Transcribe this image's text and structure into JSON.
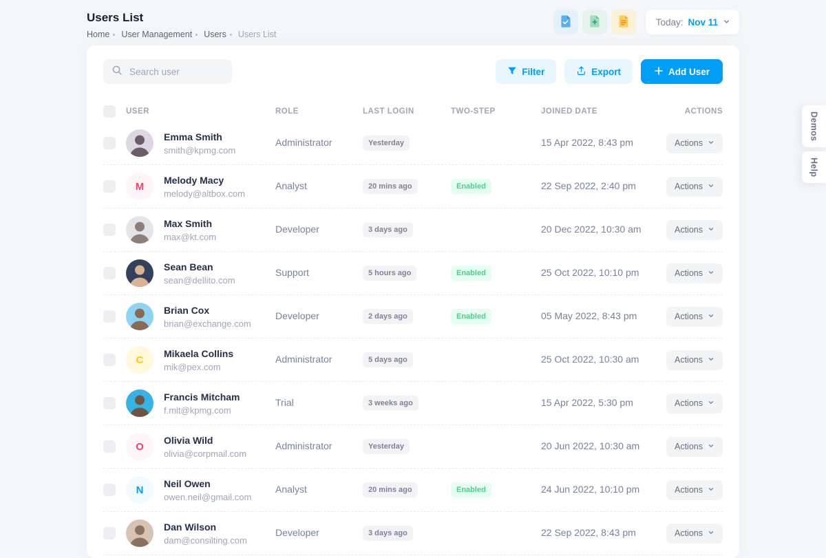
{
  "colors": {
    "primary": "#009ef7",
    "success": "#50cd89",
    "success_badge_bg": "#e4fff1",
    "light_badge_bg": "#f3f3f6",
    "page_bg": "#f4f6f9"
  },
  "page": {
    "title": "Users List",
    "breadcrumb": [
      "Home",
      "User Management",
      "Users",
      "Users List"
    ],
    "date_label": "Today:",
    "date_value": "Nov 11",
    "quick_icons": [
      "file-check-icon",
      "file-plus-icon",
      "file-lines-icon"
    ]
  },
  "side_tabs": {
    "demos": "Demos",
    "help": "Help"
  },
  "toolbar": {
    "search_placeholder": "Search user",
    "filter_label": "Filter",
    "export_label": "Export",
    "add_user_label": "Add User"
  },
  "table": {
    "headers": [
      "User",
      "Role",
      "Last login",
      "Two-step",
      "Joined Date",
      "Actions"
    ],
    "actions_label": "Actions",
    "rows": [
      {
        "name": "Emma Smith",
        "email": "smith@kpmg.com",
        "role": "Administrator",
        "last_login": "Yesterday",
        "two_step": "",
        "joined": "15 Apr 2022, 8:43 pm",
        "avatar": {
          "kind": "photo",
          "bg": "#dcd7e2",
          "color": "#6b5d66"
        }
      },
      {
        "name": "Melody Macy",
        "email": "melody@altbox.com",
        "role": "Analyst",
        "last_login": "20 mins ago",
        "two_step": "Enabled",
        "joined": "22 Sep 2022, 2:40 pm",
        "avatar": {
          "kind": "initial",
          "initial": "M",
          "bg": "#fff5f8",
          "color": "#f1416c"
        }
      },
      {
        "name": "Max Smith",
        "email": "max@kt.com",
        "role": "Developer",
        "last_login": "3 days ago",
        "two_step": "",
        "joined": "20 Dec 2022, 10:30 am",
        "avatar": {
          "kind": "photo",
          "bg": "#e3e5e8",
          "color": "#8d8078"
        }
      },
      {
        "name": "Sean Bean",
        "email": "sean@dellito.com",
        "role": "Support",
        "last_login": "5 hours ago",
        "two_step": "Enabled",
        "joined": "25 Oct 2022, 10:10 pm",
        "avatar": {
          "kind": "photo",
          "bg": "#33415c",
          "color": "#d8b394"
        }
      },
      {
        "name": "Brian Cox",
        "email": "brian@exchange.com",
        "role": "Developer",
        "last_login": "2 days ago",
        "two_step": "Enabled",
        "joined": "05 May 2022, 8:43 pm",
        "avatar": {
          "kind": "photo",
          "bg": "#8ed4f2",
          "color": "#8a6a52"
        }
      },
      {
        "name": "Mikaela Collins",
        "email": "mik@pex.com",
        "role": "Administrator",
        "last_login": "5 days ago",
        "two_step": "",
        "joined": "25 Oct 2022, 10:30 am",
        "avatar": {
          "kind": "initial",
          "initial": "C",
          "bg": "#fff8dd",
          "color": "#ffc700"
        }
      },
      {
        "name": "Francis Mitcham",
        "email": "f.mit@kpmg.com",
        "role": "Trial",
        "last_login": "3 weeks ago",
        "two_step": "",
        "joined": "15 Apr 2022, 5:30 pm",
        "avatar": {
          "kind": "photo",
          "bg": "#36b3e3",
          "color": "#6f5442"
        }
      },
      {
        "name": "Olivia Wild",
        "email": "olivia@corpmail.com",
        "role": "Administrator",
        "last_login": "Yesterday",
        "two_step": "",
        "joined": "20 Jun 2022, 10:30 am",
        "avatar": {
          "kind": "initial",
          "initial": "O",
          "bg": "#fff5f8",
          "color": "#f1416c"
        }
      },
      {
        "name": "Neil Owen",
        "email": "owen.neil@gmail.com",
        "role": "Analyst",
        "last_login": "20 mins ago",
        "two_step": "Enabled",
        "joined": "24 Jun 2022, 10:10 pm",
        "avatar": {
          "kind": "initial",
          "initial": "N",
          "bg": "#f1faff",
          "color": "#009ef7"
        }
      },
      {
        "name": "Dan Wilson",
        "email": "dam@consilting.com",
        "role": "Developer",
        "last_login": "3 days ago",
        "two_step": "",
        "joined": "22 Sep 2022, 8:43 pm",
        "avatar": {
          "kind": "photo",
          "bg": "#d6c3b2",
          "color": "#8a7263"
        }
      }
    ]
  }
}
